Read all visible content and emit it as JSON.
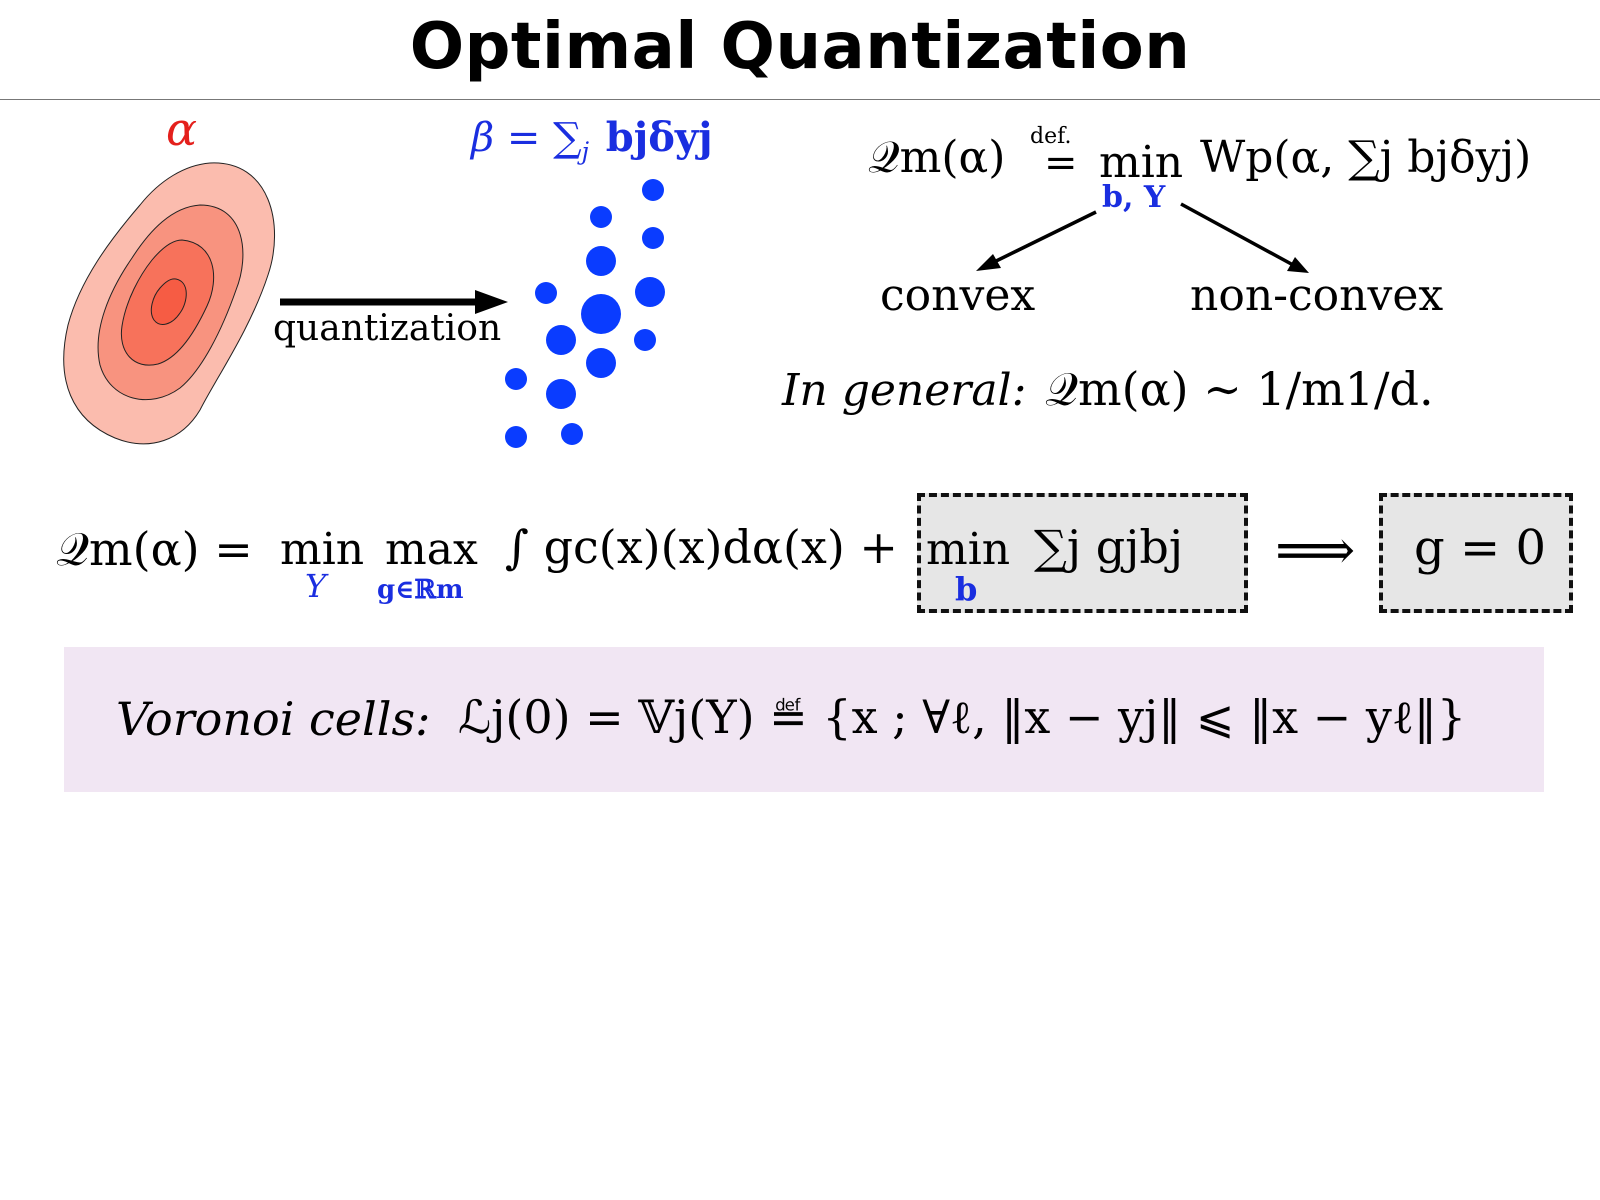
{
  "title": "Optimal Quantization",
  "diagram": {
    "alpha_label": "α",
    "beta_eq": "β = ∑",
    "beta_tail": "bjδyj",
    "arrow_label": "quantization",
    "convex_label": "convex",
    "nonconvex_label": "non-convex"
  },
  "formulas": {
    "definition": {
      "lhs": "𝒬m(α)",
      "defeq": "def.",
      "min": "min",
      "under_min": "b, Y",
      "rhs": "Wp(α, ∑j bjδyj)"
    },
    "general": {
      "text": "In general:",
      "expr": "𝒬m(α) ∼ 1/m1/d."
    },
    "dual": {
      "lhs": "𝒬m(α) =",
      "min1": "min",
      "min1_sub": "Y",
      "max": "max",
      "max_sub": "g∈ℝm",
      "integral": "∫ gc(x)(x)dα(x) +",
      "min2": "min",
      "min2_sub": "b",
      "sum": "∑j gjbj",
      "implies": "⟹",
      "result": "g = 0"
    },
    "voronoi": {
      "label": "Voronoi cells:",
      "expr": "ℒj(0) = 𝕍j(Y) ≝ {x ; ∀ℓ, ‖x − yj‖ ⩽ ‖x − yℓ‖}"
    }
  },
  "colors": {
    "red": "#e4201c",
    "blue": "#1a2ee0",
    "dot_blue": "#0a3cff",
    "contour_fills": [
      "#fbbcae",
      "#f8937f",
      "#f7725b",
      "#f65c44"
    ],
    "pink_panel": "#f1e6f3",
    "gray_box": "#e6e6e6"
  }
}
